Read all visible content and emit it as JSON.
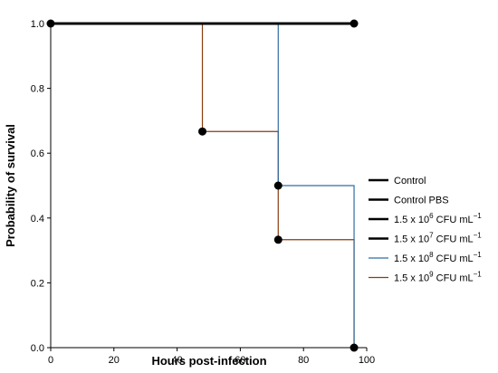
{
  "chart_data": {
    "type": "line",
    "step": true,
    "xlabel": "Hours post-infection",
    "ylabel": "Probability of survival",
    "xlim": [
      0,
      100
    ],
    "ylim": [
      0,
      1.0
    ],
    "xticks": [
      0,
      20,
      40,
      60,
      80,
      100
    ],
    "yticks": [
      0.0,
      0.2,
      0.4,
      0.6,
      0.8,
      1.0
    ],
    "xtick_labels": [
      "0",
      "20",
      "40",
      "60",
      "80",
      "100"
    ],
    "ytick_labels": [
      "0.0",
      "0.2",
      "0.4",
      "0.6",
      "0.8",
      "1.0"
    ],
    "legend_position": "right",
    "series": [
      {
        "name": "Control",
        "legend_main": "Control",
        "legend_sup": "",
        "legend_tail": "",
        "legend_tail_sup": "",
        "color": "#000000",
        "width": 2.5,
        "x": [
          0,
          96
        ],
        "y": [
          1.0,
          1.0
        ],
        "markers": [
          [
            0,
            1.0
          ],
          [
            96,
            1.0
          ]
        ]
      },
      {
        "name": "Control PBS",
        "legend_main": "Control PBS",
        "legend_sup": "",
        "legend_tail": "",
        "legend_tail_sup": "",
        "color": "#000000",
        "width": 2.5,
        "x": [
          0,
          96
        ],
        "y": [
          1.0,
          1.0
        ],
        "markers": []
      },
      {
        "name": "1.5 x 10^6 CFU mL^-1",
        "legend_main": "1.5 x 10",
        "legend_sup": "6",
        "legend_tail": " CFU mL",
        "legend_tail_sup": "−1",
        "color": "#000000",
        "width": 2.5,
        "x": [
          0,
          96
        ],
        "y": [
          1.0,
          1.0
        ],
        "markers": []
      },
      {
        "name": "1.5 x 10^7 CFU mL^-1",
        "legend_main": "1.5 x 10",
        "legend_sup": "7",
        "legend_tail": " CFU mL",
        "legend_tail_sup": "−1",
        "color": "#000000",
        "width": 2.5,
        "x": [
          0,
          96
        ],
        "y": [
          1.0,
          1.0
        ],
        "markers": []
      },
      {
        "name": "1.5 x 10^8 CFU mL^-1",
        "legend_main": "1.5 x 10",
        "legend_sup": "8",
        "legend_tail": " CFU mL",
        "legend_tail_sup": "−1",
        "color": "#2e6da4",
        "width": 1.2,
        "x": [
          0,
          72,
          72,
          96,
          96
        ],
        "y": [
          1.0,
          1.0,
          0.5,
          0.5,
          0.0
        ],
        "markers": [
          [
            72,
            0.5
          ]
        ]
      },
      {
        "name": "1.5 x 10^9 CFU mL^-1",
        "legend_main": "1.5 x 10",
        "legend_sup": "9",
        "legend_tail": " CFU mL",
        "legend_tail_sup": "−1",
        "color": "#8b3a0f",
        "width": 1.2,
        "x": [
          0,
          48,
          48,
          72,
          72,
          96,
          96
        ],
        "y": [
          1.0,
          1.0,
          0.667,
          0.667,
          0.333,
          0.333,
          0.0
        ],
        "markers": [
          [
            48,
            0.667
          ],
          [
            72,
            0.333
          ],
          [
            96,
            0.0
          ]
        ]
      }
    ]
  }
}
